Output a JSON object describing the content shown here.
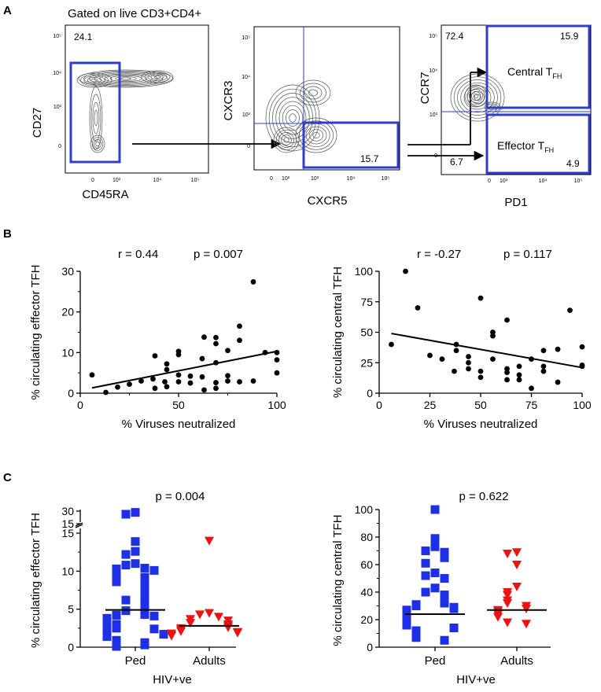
{
  "colors": {
    "gate": "#2f3fc8",
    "ped": "#1f2fe6",
    "adult": "#ee1111",
    "ink": "#000000",
    "contour": "#555555"
  },
  "panel_a": {
    "letter": "A",
    "gated_on": "Gated on live CD3+CD4+",
    "plot1": {
      "ylabel": "CD27",
      "xlabel": "CD45RA",
      "gate_pct": "24.1",
      "yticks": [
        "10⁵",
        "10⁴",
        "10³",
        "0"
      ],
      "xticks": [
        "0",
        "10³",
        "10⁴",
        "10⁵"
      ]
    },
    "plot2": {
      "ylabel": "CXCR3",
      "xlabel": "CXCR5",
      "gate_pct": "15.7",
      "yticks": [
        "10⁵",
        "10⁴",
        "10³",
        "0"
      ],
      "xticks": [
        "0",
        "10²",
        "10³",
        "10⁴",
        "10⁵"
      ]
    },
    "plot3": {
      "ylabel": "CCR7",
      "xlabel": "PD1",
      "pct_top_left": "72.4",
      "pct_top_right": "15.9",
      "pct_bottom_left": "6.7",
      "pct_bottom_right": "4.9",
      "central_label": "Central T",
      "effector_label": "Effector T",
      "subscript": "FH",
      "yticks": [
        "10⁵",
        "10⁴",
        "10³",
        "0"
      ],
      "xticks": [
        "0",
        "10³",
        "10⁴",
        "10⁵"
      ]
    }
  },
  "panel_b": {
    "letter": "B"
  },
  "panel_c": {
    "letter": "C"
  },
  "chart_data": [
    {
      "type": "scatter",
      "panel": "B-left",
      "xlabel": "% Viruses neutralized",
      "ylabel": "% circulating effector TFH",
      "stat_r": "r = 0.44",
      "stat_p": "p = 0.007",
      "xlim": [
        0,
        100
      ],
      "ylim": [
        0,
        30
      ],
      "xticks": [
        0,
        50,
        100
      ],
      "yticks": [
        0,
        10,
        20,
        30
      ],
      "xminor": [
        25,
        75
      ],
      "yminor": [
        5,
        15,
        25
      ],
      "points": [
        [
          6,
          4.5
        ],
        [
          13,
          0.2
        ],
        [
          19,
          1.5
        ],
        [
          25,
          2.2
        ],
        [
          31,
          3.0
        ],
        [
          37,
          3.5
        ],
        [
          38,
          9.2
        ],
        [
          38,
          1.2
        ],
        [
          43,
          2.8
        ],
        [
          44,
          1.6
        ],
        [
          44,
          5.8
        ],
        [
          44,
          7.2
        ],
        [
          50,
          4.5
        ],
        [
          50,
          9.5
        ],
        [
          50,
          10.3
        ],
        [
          50,
          2.8
        ],
        [
          56,
          4.2
        ],
        [
          56,
          2.5
        ],
        [
          62,
          4.0
        ],
        [
          62,
          8.5
        ],
        [
          63,
          13.8
        ],
        [
          63,
          0.8
        ],
        [
          69,
          13.7
        ],
        [
          69,
          12.2
        ],
        [
          69,
          7.5
        ],
        [
          69,
          2.6
        ],
        [
          69,
          1.2
        ],
        [
          75,
          10.5
        ],
        [
          75,
          4.3
        ],
        [
          75,
          3.0
        ],
        [
          81,
          13.0
        ],
        [
          81,
          16.5
        ],
        [
          81,
          2.8
        ],
        [
          88,
          27.4
        ],
        [
          88,
          3.0
        ],
        [
          94,
          10.0
        ],
        [
          100,
          10.0
        ],
        [
          100,
          8.2
        ],
        [
          100,
          5.0
        ]
      ],
      "fit": [
        [
          6,
          1.3
        ],
        [
          100,
          10.3
        ]
      ]
    },
    {
      "type": "scatter",
      "panel": "B-right",
      "xlabel": "% Viruses neutralized",
      "ylabel": "% circulating central TFH",
      "stat_r": "r = -0.27",
      "stat_p": "p = 0.117",
      "xlim": [
        0,
        100
      ],
      "ylim": [
        0,
        100
      ],
      "xticks": [
        0,
        25,
        50,
        75,
        100
      ],
      "yticks": [
        0,
        25,
        50,
        75,
        100
      ],
      "points": [
        [
          6,
          40
        ],
        [
          13,
          100
        ],
        [
          19,
          70
        ],
        [
          25,
          31
        ],
        [
          31,
          28
        ],
        [
          37,
          18
        ],
        [
          38,
          40
        ],
        [
          38,
          35
        ],
        [
          44,
          25
        ],
        [
          44,
          20
        ],
        [
          44,
          30
        ],
        [
          50,
          13
        ],
        [
          50,
          78
        ],
        [
          50,
          18
        ],
        [
          56,
          50
        ],
        [
          56,
          47
        ],
        [
          56,
          28
        ],
        [
          63,
          60
        ],
        [
          63,
          20
        ],
        [
          63,
          17
        ],
        [
          63,
          11
        ],
        [
          69,
          22
        ],
        [
          69,
          15
        ],
        [
          69,
          11
        ],
        [
          75,
          28
        ],
        [
          75,
          4
        ],
        [
          81,
          35
        ],
        [
          81,
          22
        ],
        [
          81,
          18
        ],
        [
          88,
          36
        ],
        [
          88,
          9
        ],
        [
          94,
          68
        ],
        [
          100,
          38
        ],
        [
          100,
          23
        ],
        [
          100,
          22
        ]
      ],
      "fit": [
        [
          6,
          49
        ],
        [
          100,
          21
        ]
      ]
    },
    {
      "type": "dot-strip",
      "panel": "C-left",
      "ylabel": "% circulating effector TFH",
      "stat_p": "p = 0.004",
      "categories": [
        "Ped",
        "Adults"
      ],
      "group_label": "HIV+ve",
      "yticks": [
        "0",
        "5",
        "10",
        "15"
      ],
      "ybreak_ticks": [
        "15",
        "30"
      ],
      "ylim_lower": [
        0,
        15
      ],
      "ylim_upper": [
        15,
        30
      ],
      "series": [
        {
          "name": "Ped",
          "marker": "square",
          "median": 4.9,
          "values": [
            28.5,
            26.3,
            13.9,
            12.6,
            12.2,
            11.0,
            10.8,
            10.4,
            10.3,
            10.1,
            9.6,
            9.2,
            8.8,
            8.6,
            8.0,
            7.6,
            7.3,
            6.9,
            6.2,
            6.0,
            5.5,
            4.8,
            4.5,
            4.3,
            4.2,
            4.1,
            3.8,
            3.6,
            3.3,
            3.0,
            2.7,
            2.5,
            2.4,
            2.3,
            2.2,
            1.9,
            1.7,
            1.4,
            0.9,
            0.6,
            0.3,
            0.1
          ]
        },
        {
          "name": "Adults",
          "marker": "triangle-down",
          "median": 2.8,
          "values": [
            14.0,
            4.5,
            4.3,
            4.0,
            3.7,
            3.5,
            3.2,
            3.0,
            2.8,
            2.6,
            2.5,
            2.3,
            2.1,
            2.0,
            1.9,
            1.8,
            1.6,
            1.5
          ]
        }
      ]
    },
    {
      "type": "dot-strip",
      "panel": "C-right",
      "ylabel": "% circulating central TFH",
      "stat_p": "p = 0.622",
      "categories": [
        "Ped",
        "Adults"
      ],
      "group_label": "HIV+ve",
      "ylim": [
        0,
        100
      ],
      "yticks": [
        0,
        20,
        40,
        60,
        80,
        100
      ],
      "series": [
        {
          "name": "Ped",
          "marker": "square",
          "median": 24,
          "values": [
            100,
            79,
            73,
            70,
            69,
            65,
            61,
            54,
            52,
            50,
            43,
            40,
            38,
            36,
            34,
            32,
            31,
            30,
            29,
            28,
            27,
            26,
            25,
            24,
            23,
            22,
            21,
            20,
            19,
            18,
            17,
            16,
            14,
            12,
            11,
            10,
            7,
            5
          ]
        },
        {
          "name": "Adults",
          "marker": "triangle-down",
          "median": 27,
          "values": [
            69,
            68,
            60,
            44,
            40,
            38,
            34,
            32,
            30,
            28,
            27,
            26,
            24,
            22,
            18,
            17
          ]
        }
      ]
    }
  ]
}
